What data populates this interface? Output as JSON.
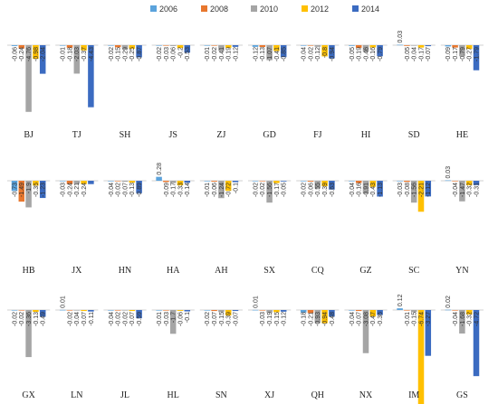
{
  "chart_data": {
    "type": "bar",
    "legend_position": "top",
    "grid": false,
    "colors": [
      "#5BA3DC",
      "#E8772E",
      "#A5A5A5",
      "#FFC000",
      "#3B6BC1"
    ],
    "series_names": [
      "2006",
      "2008",
      "2010",
      "2012",
      "2014"
    ],
    "label_values": [
      [
        "-0.06",
        "-0.24",
        "-4.76",
        "-0.98",
        "-2.04"
      ],
      [
        "-0.01",
        "-0.18",
        "-2.03",
        "-0.37",
        "-4.43"
      ],
      [
        "-0.02",
        "-0.15",
        "-0.29",
        "-0.25",
        "-0.87"
      ],
      [
        "-0.02",
        "-0.03",
        "-0.06",
        "-0.2",
        "-0.53"
      ],
      [
        "-0.01",
        "-0.02",
        "-0.41",
        "-0.19",
        "-0.12"
      ],
      [
        "-0.12",
        "-0.13",
        "-1.07",
        "-0.41",
        "-0.85"
      ],
      [
        "-0.04",
        "-0.02",
        "-0.12",
        "-0.8",
        "-0.94"
      ],
      [
        "-0.05",
        "-0.19",
        "-0.46",
        "-0.16",
        "-0.79"
      ],
      [
        "0.03",
        "-0.05",
        "-0.04",
        "-0.17",
        "-0.07"
      ],
      [
        "-0.09",
        "-0.17",
        "-0.79",
        "-0.27",
        "-1.79"
      ],
      [
        "-0.73",
        "-1.49",
        "-1.9",
        "-0.35",
        "-1.23"
      ],
      [
        "-0.03",
        "-0.24",
        "-0.21",
        "-0.24",
        ""
      ],
      [
        "-0.04",
        "-0.02",
        "-0.07",
        "-0.13",
        "-0.89"
      ],
      [
        "0.28",
        "-0.09",
        "-0.17",
        "-0.33",
        "-0.14"
      ],
      [
        "-0.01",
        "-0.06",
        "-1.24",
        "-0.72",
        "-0.1"
      ],
      [
        "-0.02",
        "-0.02",
        "-1.56",
        "-0.17",
        "-0.05"
      ],
      [
        "-0.02",
        "-0.06",
        "-0.55",
        "-0.39",
        "-0.63"
      ],
      [
        "-0.04",
        "-0.16",
        "-0.91",
        "-0.43",
        "-1.13"
      ],
      [
        "-0.03",
        "-0.08",
        "-1.56",
        "-2.21",
        "-1.12"
      ],
      [
        "0.03",
        "-0.04",
        "-1.47",
        "-0.32",
        "-0.31"
      ],
      [
        "-0.02",
        "-0.02",
        "-3.36",
        "-0.13",
        "-0.49"
      ],
      [
        "0.01",
        "-0.02",
        "-0.04",
        "-0.07",
        "-0.11"
      ],
      [
        "-0.04",
        "-0.02",
        "-0.02",
        "-0.07",
        "-0.59"
      ],
      [
        "-0.01",
        "-0.03",
        "-1.7",
        "-0.06",
        "-0.1"
      ],
      [
        "-0.02",
        "-0.07",
        "-0.15",
        "-0.39",
        "-0.07"
      ],
      [
        "0.01",
        "-0.03",
        "-0.19",
        "-0.15",
        "-0.12"
      ],
      [
        "-0.18",
        "-0.21",
        "-0.93",
        "-0.94",
        "-0.48"
      ],
      [
        "-0.04",
        "-0.07",
        "-3.08",
        "-0.47",
        "-0.36"
      ],
      [
        "0.12",
        "-0.01",
        "-0.15",
        "-6.74",
        "-3.27"
      ],
      [
        "0.02",
        "-0.04",
        "-1.68",
        "-0.32",
        "-4.72"
      ]
    ],
    "regions": [
      {
        "name": "BJ",
        "values": [
          -0.06,
          -0.24,
          -4.76,
          -0.98,
          -2.04
        ]
      },
      {
        "name": "TJ",
        "values": [
          -0.01,
          -0.18,
          -2.03,
          -0.37,
          -4.43
        ]
      },
      {
        "name": "SH",
        "values": [
          -0.02,
          -0.15,
          -0.29,
          -0.25,
          -0.87
        ]
      },
      {
        "name": "JS",
        "values": [
          -0.02,
          -0.03,
          -0.06,
          -0.2,
          -0.53
        ]
      },
      {
        "name": "ZJ",
        "values": [
          -0.01,
          -0.02,
          -0.41,
          -0.19,
          -0.12
        ]
      },
      {
        "name": "GD",
        "values": [
          -0.12,
          -0.13,
          -1.07,
          -0.41,
          -0.85
        ]
      },
      {
        "name": "FJ",
        "values": [
          -0.04,
          -0.02,
          -0.12,
          -0.8,
          -0.94
        ]
      },
      {
        "name": "HI",
        "values": [
          -0.05,
          -0.19,
          -0.46,
          -0.16,
          -0.79
        ]
      },
      {
        "name": "SD",
        "values": [
          0.03,
          -0.05,
          -0.04,
          -0.17,
          -0.07
        ]
      },
      {
        "name": "HE",
        "values": [
          -0.09,
          -0.17,
          -0.79,
          -0.27,
          -1.79
        ]
      },
      {
        "name": "HB",
        "values": [
          -0.73,
          -1.49,
          -1.9,
          -0.35,
          -1.23
        ]
      },
      {
        "name": "JX",
        "values": [
          -0.03,
          -0.24,
          -0.21,
          -0.24,
          -0.24
        ]
      },
      {
        "name": "HN",
        "values": [
          -0.04,
          -0.02,
          -0.07,
          -0.13,
          -0.89
        ]
      },
      {
        "name": "HA",
        "values": [
          0.28,
          -0.09,
          -0.17,
          -0.33,
          -0.14
        ]
      },
      {
        "name": "AH",
        "values": [
          -0.01,
          -0.06,
          -1.24,
          -0.72,
          -0.1
        ]
      },
      {
        "name": "SX",
        "values": [
          -0.02,
          -0.02,
          -1.56,
          -0.17,
          -0.05
        ]
      },
      {
        "name": "CQ",
        "values": [
          -0.02,
          -0.06,
          -0.55,
          -0.39,
          -0.63
        ]
      },
      {
        "name": "GZ",
        "values": [
          -0.04,
          -0.16,
          -0.91,
          -0.43,
          -1.13
        ]
      },
      {
        "name": "SC",
        "values": [
          -0.03,
          -0.08,
          -1.56,
          -2.21,
          -1.12
        ]
      },
      {
        "name": "YN",
        "values": [
          0.03,
          -0.04,
          -1.47,
          -0.32,
          -0.31
        ]
      },
      {
        "name": "GX",
        "values": [
          -0.02,
          -0.02,
          -3.36,
          -0.13,
          -0.49
        ]
      },
      {
        "name": "LN",
        "values": [
          0.01,
          -0.02,
          -0.04,
          -0.07,
          -0.11
        ]
      },
      {
        "name": "JL",
        "values": [
          -0.04,
          -0.02,
          -0.02,
          -0.07,
          -0.59
        ]
      },
      {
        "name": "HL",
        "values": [
          -0.01,
          -0.03,
          -1.7,
          -0.06,
          -0.1
        ]
      },
      {
        "name": "SN",
        "values": [
          -0.02,
          -0.07,
          -0.15,
          -0.39,
          -0.07
        ]
      },
      {
        "name": "XJ",
        "values": [
          0.01,
          -0.03,
          -0.19,
          -0.15,
          -0.12
        ]
      },
      {
        "name": "QH",
        "values": [
          -0.18,
          -0.21,
          -0.93,
          -0.94,
          -0.48
        ]
      },
      {
        "name": "NX",
        "values": [
          -0.04,
          -0.07,
          -3.08,
          -0.47,
          -0.36
        ]
      },
      {
        "name": "IM",
        "values": [
          0.12,
          -0.01,
          -0.15,
          -6.74,
          -3.27
        ]
      },
      {
        "name": "GS",
        "values": [
          0.02,
          -0.04,
          -1.68,
          -0.32,
          -4.72
        ]
      }
    ]
  }
}
